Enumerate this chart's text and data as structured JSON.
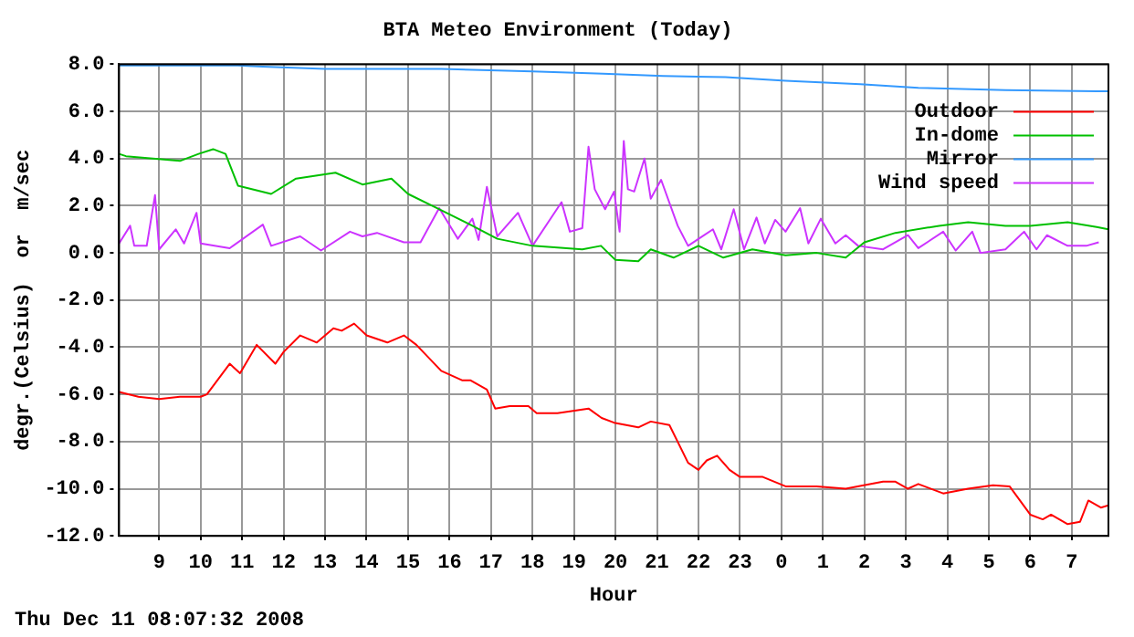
{
  "chart_data": {
    "type": "line",
    "title": "BTA Meteo Environment (Today)",
    "xlabel": "Hour",
    "ylabel": "degr.(Celsius)  or  m/sec",
    "annotations": [
      "Thu Dec 11 08:07:32 2008"
    ],
    "xlim": [
      "2008-12-10T08:02",
      "2008-12-11T07:53"
    ],
    "xticks": [
      {
        "value": "2008-12-10T09:00",
        "label": "9"
      },
      {
        "value": "2008-12-10T10:00",
        "label": "10"
      },
      {
        "value": "2008-12-10T11:00",
        "label": "11"
      },
      {
        "value": "2008-12-10T12:00",
        "label": "12"
      },
      {
        "value": "2008-12-10T13:00",
        "label": "13"
      },
      {
        "value": "2008-12-10T14:00",
        "label": "14"
      },
      {
        "value": "2008-12-10T15:00",
        "label": "15"
      },
      {
        "value": "2008-12-10T16:00",
        "label": "16"
      },
      {
        "value": "2008-12-10T17:00",
        "label": "17"
      },
      {
        "value": "2008-12-10T18:00",
        "label": "18"
      },
      {
        "value": "2008-12-10T19:00",
        "label": "19"
      },
      {
        "value": "2008-12-10T20:00",
        "label": "20"
      },
      {
        "value": "2008-12-10T21:00",
        "label": "21"
      },
      {
        "value": "2008-12-10T22:00",
        "label": "22"
      },
      {
        "value": "2008-12-10T23:00",
        "label": "23"
      },
      {
        "value": "2008-12-11T00:00",
        "label": "0"
      },
      {
        "value": "2008-12-11T01:00",
        "label": "1"
      },
      {
        "value": "2008-12-11T02:00",
        "label": "2"
      },
      {
        "value": "2008-12-11T03:00",
        "label": "3"
      },
      {
        "value": "2008-12-11T04:00",
        "label": "4"
      },
      {
        "value": "2008-12-11T05:00",
        "label": "5"
      },
      {
        "value": "2008-12-11T06:00",
        "label": "6"
      },
      {
        "value": "2008-12-11T07:00",
        "label": "7"
      }
    ],
    "ylim": [
      -12,
      8
    ],
    "yticks": [
      {
        "value": -12,
        "label": "-12.0"
      },
      {
        "value": -10,
        "label": "-10.0"
      },
      {
        "value": -8,
        "label": "-8.0"
      },
      {
        "value": -6,
        "label": "-6.0"
      },
      {
        "value": -4,
        "label": "-4.0"
      },
      {
        "value": -2,
        "label": "-2.0"
      },
      {
        "value": 0,
        "label": "0.0"
      },
      {
        "value": 2,
        "label": "2.0"
      },
      {
        "value": 4,
        "label": "4.0"
      },
      {
        "value": 6,
        "label": "6.0"
      },
      {
        "value": 8,
        "label": "8.0"
      }
    ],
    "grid": true,
    "legend": "top right",
    "marker": "none",
    "line_style": "solid",
    "series": [
      {
        "name": "Outdoor",
        "color": "#ff0000",
        "x": [
          "2008-12-10T08:02",
          "2008-12-10T08:30",
          "2008-12-10T09:00",
          "2008-12-10T09:30",
          "2008-12-10T10:00",
          "2008-12-10T10:09",
          "2008-12-10T10:42",
          "2008-12-10T10:57",
          "2008-12-10T11:21",
          "2008-12-10T11:48",
          "2008-12-10T12:00",
          "2008-12-10T12:24",
          "2008-12-10T12:48",
          "2008-12-10T13:12",
          "2008-12-10T13:24",
          "2008-12-10T13:42",
          "2008-12-10T14:00",
          "2008-12-10T14:30",
          "2008-12-10T14:54",
          "2008-12-10T15:12",
          "2008-12-10T15:48",
          "2008-12-10T16:18",
          "2008-12-10T16:30",
          "2008-12-10T16:54",
          "2008-12-10T17:06",
          "2008-12-10T17:27",
          "2008-12-10T17:54",
          "2008-12-10T18:06",
          "2008-12-10T18:36",
          "2008-12-10T19:21",
          "2008-12-10T19:40",
          "2008-12-10T19:58",
          "2008-12-10T20:33",
          "2008-12-10T20:51",
          "2008-12-10T21:18",
          "2008-12-10T21:45",
          "2008-12-10T22:00",
          "2008-12-10T22:12",
          "2008-12-10T22:27",
          "2008-12-10T22:45",
          "2008-12-10T23:00",
          "2008-12-10T23:33",
          "2008-12-11T00:06",
          "2008-12-11T00:51",
          "2008-12-11T01:33",
          "2008-12-11T02:27",
          "2008-12-11T02:45",
          "2008-12-11T03:03",
          "2008-12-11T03:18",
          "2008-12-11T03:54",
          "2008-12-11T04:30",
          "2008-12-11T05:06",
          "2008-12-11T05:30",
          "2008-12-11T06:00",
          "2008-12-11T06:18",
          "2008-12-11T06:30",
          "2008-12-11T06:54",
          "2008-12-11T07:12",
          "2008-12-11T07:24",
          "2008-12-11T07:42",
          "2008-12-11T07:53"
        ],
        "values": [
          -5.9,
          -6.1,
          -6.2,
          -6.1,
          -6.1,
          -6.0,
          -4.7,
          -5.1,
          -3.9,
          -4.7,
          -4.2,
          -3.5,
          -3.8,
          -3.2,
          -3.3,
          -3.0,
          -3.5,
          -3.8,
          -3.5,
          -3.9,
          -5.0,
          -5.4,
          -5.4,
          -5.8,
          -6.6,
          -6.5,
          -6.5,
          -6.8,
          -6.8,
          -6.6,
          -7.0,
          -7.2,
          -7.4,
          -7.15,
          -7.3,
          -8.9,
          -9.2,
          -8.8,
          -8.6,
          -9.2,
          -9.5,
          -9.5,
          -9.9,
          -9.9,
          -10.0,
          -9.7,
          -9.7,
          -10.0,
          -9.8,
          -10.2,
          -10.0,
          -9.85,
          -9.9,
          -11.1,
          -11.3,
          -11.1,
          -11.5,
          -11.4,
          -10.5,
          -10.8,
          -10.7
        ]
      },
      {
        "name": "In-dome",
        "color": "#00c000",
        "x": [
          "2008-12-10T08:02",
          "2008-12-10T08:12",
          "2008-12-10T09:30",
          "2008-12-10T09:57",
          "2008-12-10T10:18",
          "2008-12-10T10:36",
          "2008-12-10T10:54",
          "2008-12-10T11:42",
          "2008-12-10T12:18",
          "2008-12-10T13:15",
          "2008-12-10T13:54",
          "2008-12-10T14:36",
          "2008-12-10T15:00",
          "2008-12-10T15:42",
          "2008-12-10T16:33",
          "2008-12-10T17:09",
          "2008-12-10T18:00",
          "2008-12-10T19:12",
          "2008-12-10T19:39",
          "2008-12-10T20:00",
          "2008-12-10T20:33",
          "2008-12-10T20:51",
          "2008-12-10T21:24",
          "2008-12-10T22:00",
          "2008-12-10T22:36",
          "2008-12-10T23:18",
          "2008-12-11T00:06",
          "2008-12-11T00:51",
          "2008-12-11T01:33",
          "2008-12-11T02:00",
          "2008-12-11T02:45",
          "2008-12-11T03:48",
          "2008-12-11T04:30",
          "2008-12-11T05:24",
          "2008-12-11T06:00",
          "2008-12-11T06:54",
          "2008-12-11T07:36",
          "2008-12-11T07:53"
        ],
        "values": [
          4.2,
          4.1,
          3.9,
          4.2,
          4.4,
          4.2,
          2.85,
          2.5,
          3.15,
          3.4,
          2.9,
          3.15,
          2.5,
          1.9,
          1.15,
          0.6,
          0.3,
          0.15,
          0.3,
          -0.3,
          -0.35,
          0.15,
          -0.2,
          0.3,
          -0.2,
          0.15,
          -0.1,
          0.0,
          -0.2,
          0.45,
          0.85,
          1.15,
          1.3,
          1.15,
          1.15,
          1.3,
          1.1,
          1.0
        ]
      },
      {
        "name": "Mirror",
        "color": "#3399ff",
        "x": [
          "2008-12-10T08:02",
          "2008-12-10T10:54",
          "2008-12-10T11:30",
          "2008-12-10T13:00",
          "2008-12-10T15:48",
          "2008-12-10T18:00",
          "2008-12-10T19:42",
          "2008-12-10T21:09",
          "2008-12-10T22:39",
          "2008-12-11T00:06",
          "2008-12-11T01:54",
          "2008-12-11T03:18",
          "2008-12-11T05:24",
          "2008-12-11T07:36",
          "2008-12-11T07:53"
        ],
        "values": [
          7.95,
          7.95,
          7.9,
          7.8,
          7.8,
          7.7,
          7.6,
          7.5,
          7.45,
          7.3,
          7.15,
          7.0,
          6.9,
          6.85,
          6.85
        ]
      },
      {
        "name": "Wind speed",
        "color": "#cc33ff",
        "x": [
          "2008-12-10T08:02",
          "2008-12-10T08:18",
          "2008-12-10T08:24",
          "2008-12-10T08:42",
          "2008-12-10T08:54",
          "2008-12-10T09:00",
          "2008-12-10T09:24",
          "2008-12-10T09:36",
          "2008-12-10T09:54",
          "2008-12-10T10:00",
          "2008-12-10T10:42",
          "2008-12-10T11:30",
          "2008-12-10T11:42",
          "2008-12-10T12:24",
          "2008-12-10T12:54",
          "2008-12-10T13:36",
          "2008-12-10T13:54",
          "2008-12-10T14:15",
          "2008-12-10T14:54",
          "2008-12-10T15:18",
          "2008-12-10T15:45",
          "2008-12-10T16:12",
          "2008-12-10T16:33",
          "2008-12-10T16:42",
          "2008-12-10T16:54",
          "2008-12-10T17:09",
          "2008-12-10T17:39",
          "2008-12-10T18:00",
          "2008-12-10T18:42",
          "2008-12-10T18:54",
          "2008-12-10T19:12",
          "2008-12-10T19:21",
          "2008-12-10T19:30",
          "2008-12-10T19:45",
          "2008-12-10T19:58",
          "2008-12-10T20:06",
          "2008-12-10T20:12",
          "2008-12-10T20:18",
          "2008-12-10T20:27",
          "2008-12-10T20:42",
          "2008-12-10T20:51",
          "2008-12-10T21:06",
          "2008-12-10T21:30",
          "2008-12-10T21:45",
          "2008-12-10T22:21",
          "2008-12-10T22:33",
          "2008-12-10T22:51",
          "2008-12-10T23:06",
          "2008-12-10T23:24",
          "2008-12-10T23:36",
          "2008-12-10T23:51",
          "2008-12-11T00:06",
          "2008-12-11T00:27",
          "2008-12-11T00:39",
          "2008-12-11T00:57",
          "2008-12-11T01:18",
          "2008-12-11T01:33",
          "2008-12-11T01:51",
          "2008-12-11T02:27",
          "2008-12-11T03:03",
          "2008-12-11T03:18",
          "2008-12-11T03:54",
          "2008-12-11T04:12",
          "2008-12-11T04:36",
          "2008-12-11T04:48",
          "2008-12-11T05:24",
          "2008-12-11T05:51",
          "2008-12-11T06:09",
          "2008-12-11T06:24",
          "2008-12-11T06:54",
          "2008-12-11T07:21",
          "2008-12-11T07:39"
        ],
        "values": [
          0.4,
          1.15,
          0.3,
          0.3,
          2.45,
          0.15,
          1.0,
          0.4,
          1.7,
          0.4,
          0.2,
          1.2,
          0.3,
          0.7,
          0.1,
          0.9,
          0.7,
          0.85,
          0.45,
          0.45,
          1.9,
          0.6,
          1.45,
          0.55,
          2.8,
          0.7,
          1.7,
          0.3,
          2.15,
          0.9,
          1.05,
          4.5,
          2.7,
          1.85,
          2.6,
          0.9,
          4.75,
          2.7,
          2.6,
          4.0,
          2.3,
          3.1,
          1.15,
          0.3,
          1.0,
          0.15,
          1.85,
          0.15,
          1.5,
          0.4,
          1.4,
          0.9,
          1.9,
          0.4,
          1.45,
          0.4,
          0.75,
          0.3,
          0.15,
          0.75,
          0.2,
          0.9,
          0.1,
          0.9,
          0.0,
          0.15,
          0.9,
          0.15,
          0.75,
          0.3,
          0.3,
          0.45
        ]
      }
    ]
  }
}
